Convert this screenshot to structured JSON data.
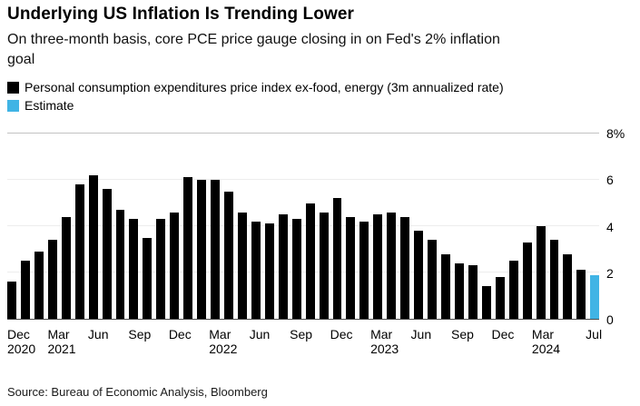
{
  "source": "Source: Bureau of Economic Analysis, Bloomberg",
  "legend": {
    "items": [
      {
        "label": "Personal consumption expenditures price index ex-food, energy (3m annualized rate)",
        "color": "#000000"
      },
      {
        "label": "Estimate",
        "color": "#40b4e5"
      }
    ]
  },
  "chart_data": {
    "type": "bar",
    "title": "Underlying US Inflation Is Trending Lower",
    "subtitle": "On three-month basis, core PCE price gauge closing in on Fed's 2% inflation\ngoal",
    "series_name": "Personal consumption expenditures price index ex-food, energy (3m annualized rate)",
    "estimate_label": "Estimate",
    "ylabel": "%",
    "ylim": [
      0,
      8
    ],
    "grid": "horizontal",
    "legend_position": "top-left",
    "bar_color": "#000000",
    "estimate_color": "#40b4e5",
    "estimate_index": 43,
    "x": [
      "Dec 2020",
      "Jan 2021",
      "Feb 2021",
      "Mar 2021",
      "Apr 2021",
      "May 2021",
      "Jun 2021",
      "Jul 2021",
      "Aug 2021",
      "Sep 2021",
      "Oct 2021",
      "Nov 2021",
      "Dec 2021",
      "Jan 2022",
      "Feb 2022",
      "Mar 2022",
      "Apr 2022",
      "May 2022",
      "Jun 2022",
      "Jul 2022",
      "Aug 2022",
      "Sep 2022",
      "Oct 2022",
      "Nov 2022",
      "Dec 2022",
      "Jan 2023",
      "Feb 2023",
      "Mar 2023",
      "Apr 2023",
      "May 2023",
      "Jun 2023",
      "Jul 2023",
      "Aug 2023",
      "Sep 2023",
      "Oct 2023",
      "Nov 2023",
      "Dec 2023",
      "Jan 2024",
      "Feb 2024",
      "Mar 2024",
      "Apr 2024",
      "May 2024",
      "Jun 2024",
      "Jul 2024"
    ],
    "values": [
      1.6,
      2.5,
      2.9,
      3.4,
      4.4,
      5.8,
      6.2,
      5.6,
      4.7,
      4.3,
      3.5,
      4.3,
      4.6,
      6.1,
      6.0,
      6.0,
      5.5,
      4.6,
      4.2,
      4.1,
      4.5,
      4.3,
      5.0,
      4.6,
      5.2,
      4.4,
      4.2,
      4.5,
      4.6,
      4.4,
      3.8,
      3.4,
      2.8,
      2.4,
      2.3,
      1.4,
      1.8,
      2.5,
      3.3,
      4.0,
      3.4,
      2.8,
      2.1,
      1.9
    ],
    "y_ticks": [
      {
        "value": 8,
        "label": "8%"
      },
      {
        "value": 6,
        "label": "6"
      },
      {
        "value": 4,
        "label": "4"
      },
      {
        "value": 2,
        "label": "2"
      },
      {
        "value": 0,
        "label": "0"
      }
    ],
    "x_ticks": [
      {
        "index": 0,
        "month": "Dec",
        "year": "2020"
      },
      {
        "index": 3,
        "month": "Mar",
        "year": "2021"
      },
      {
        "index": 6,
        "month": "Jun"
      },
      {
        "index": 9,
        "month": "Sep"
      },
      {
        "index": 12,
        "month": "Dec"
      },
      {
        "index": 15,
        "month": "Mar",
        "year": "2022"
      },
      {
        "index": 18,
        "month": "Jun"
      },
      {
        "index": 21,
        "month": "Sep"
      },
      {
        "index": 24,
        "month": "Dec"
      },
      {
        "index": 27,
        "month": "Mar",
        "year": "2023"
      },
      {
        "index": 30,
        "month": "Jun"
      },
      {
        "index": 33,
        "month": "Sep"
      },
      {
        "index": 36,
        "month": "Dec"
      },
      {
        "index": 39,
        "month": "Mar",
        "year": "2024"
      },
      {
        "index": 43,
        "month": "Jul"
      }
    ]
  }
}
